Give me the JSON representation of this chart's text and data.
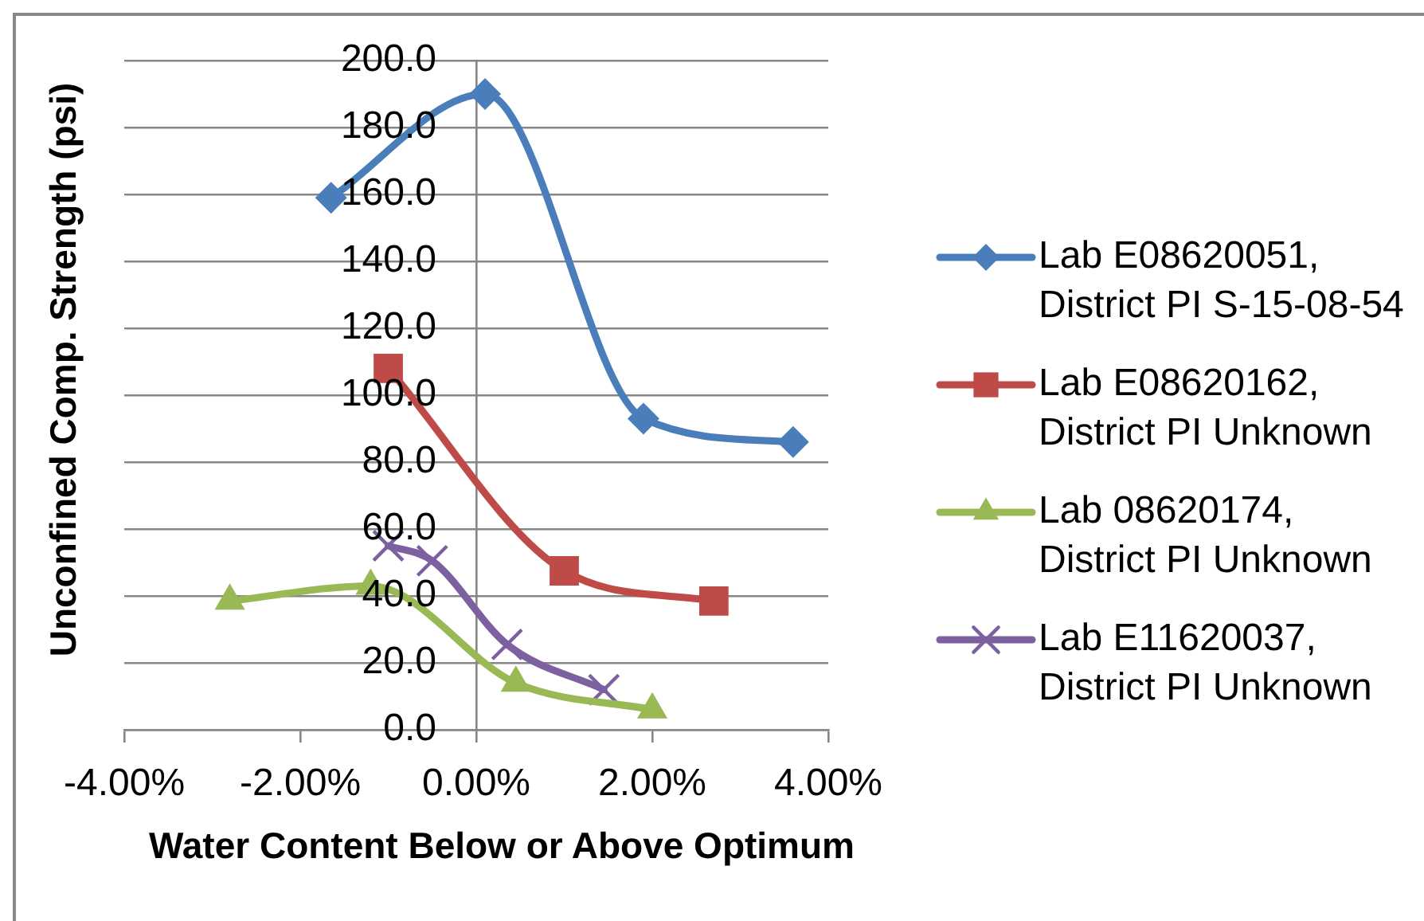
{
  "chart_data": {
    "type": "line",
    "xlabel": "Water Content Below or Above Optimum",
    "ylabel": "Unconfined Comp. Strength (psi)",
    "xlim": [
      -4,
      4
    ],
    "xticks": [
      {
        "value": -4,
        "label": "-4.00%"
      },
      {
        "value": -2,
        "label": "-2.00%"
      },
      {
        "value": 0,
        "label": "0.00%"
      },
      {
        "value": 2,
        "label": "2.00%"
      },
      {
        "value": 4,
        "label": "4.00%"
      }
    ],
    "ylim": [
      0,
      200
    ],
    "yticks": [
      {
        "value": 0,
        "label": "0.0"
      },
      {
        "value": 20,
        "label": "20.0"
      },
      {
        "value": 40,
        "label": "40.0"
      },
      {
        "value": 60,
        "label": "60.0"
      },
      {
        "value": 80,
        "label": "80.0"
      },
      {
        "value": 100,
        "label": "100.0"
      },
      {
        "value": 120,
        "label": "120.0"
      },
      {
        "value": 140,
        "label": "140.0"
      },
      {
        "value": 160,
        "label": "160.0"
      },
      {
        "value": 180,
        "label": "180.0"
      },
      {
        "value": 200,
        "label": "200.0"
      }
    ],
    "grid": "y",
    "legend": "right",
    "line_style": "solid",
    "series": [
      {
        "name": "Lab E08620051, District PI S-15-08-54",
        "color": "#4a7ebb",
        "marker": "diamond",
        "x": [
          -1.65,
          0.1,
          1.9,
          3.6
        ],
        "values": [
          159,
          190,
          93,
          86
        ]
      },
      {
        "name": "Lab E08620162, District PI Unknown",
        "color": "#be4b48",
        "marker": "square",
        "x": [
          -1.0,
          1.0,
          2.7
        ],
        "values": [
          108,
          47.5,
          38.5
        ]
      },
      {
        "name": "Lab 08620174, District PI Unknown",
        "color": "#98b954",
        "marker": "triangle",
        "x": [
          -2.8,
          -1.2,
          0.45,
          2.0
        ],
        "values": [
          38.5,
          43,
          14,
          6
        ]
      },
      {
        "name": "Lab E11620037, District PI Unknown",
        "color": "#7d60a0",
        "marker": "cross",
        "x": [
          -1.0,
          -0.5,
          0.35,
          1.45
        ],
        "values": [
          55,
          50.5,
          25.5,
          12
        ]
      }
    ]
  }
}
